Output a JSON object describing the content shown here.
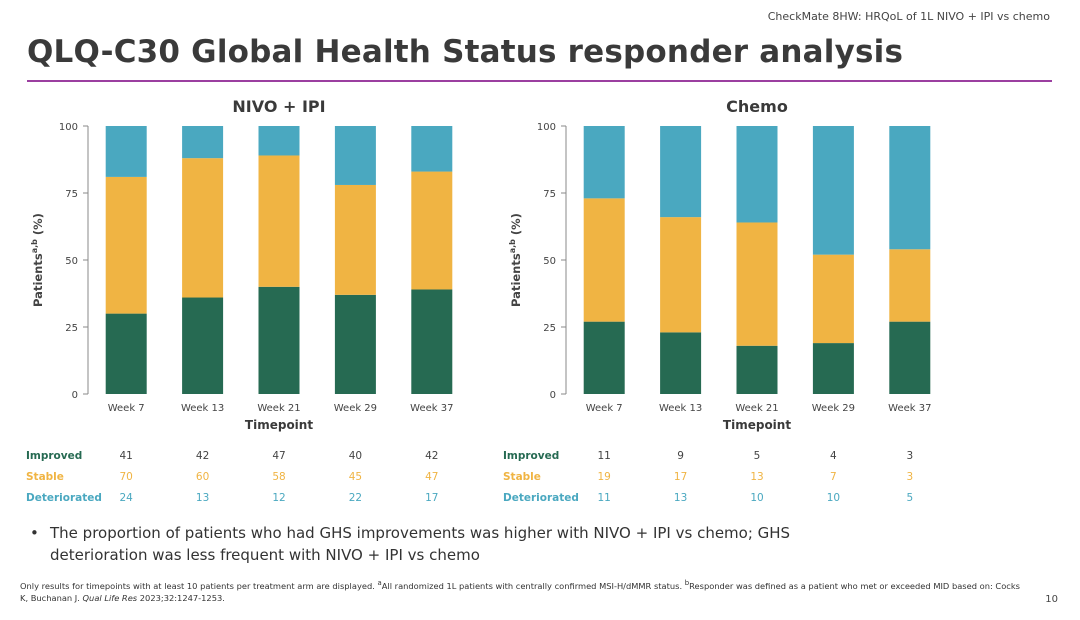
{
  "header": {
    "reference": "CheckMate 8HW: HRQoL of 1L NIVO + IPI vs chemo",
    "title": "QLQ-C30 Global Health Status responder analysis"
  },
  "colors": {
    "improved": "#266a52",
    "stable": "#f0b443",
    "deteriorated": "#4aa8c0",
    "title_rule": "#9b3fa0",
    "axis": "#888888"
  },
  "row_labels": [
    "Improved",
    "Stable",
    "Deteriorated"
  ],
  "chart_data": [
    {
      "type": "bar",
      "stacked": true,
      "title": "NIVO + IPI",
      "xlabel": "Timepoint",
      "ylabel": "Patients",
      "ylabel_superscript": "a,b",
      "ylabel_unit": "(%)",
      "ylim": [
        0,
        100
      ],
      "yticks": [
        "0",
        "25",
        "50",
        "75",
        "100"
      ],
      "categories": [
        "Week 7",
        "Week 13",
        "Week 21",
        "Week 29",
        "Week 37"
      ],
      "series": [
        {
          "name": "Improved",
          "values": [
            30,
            36,
            40,
            37,
            39
          ],
          "counts": [
            "41",
            "42",
            "47",
            "40",
            "42"
          ]
        },
        {
          "name": "Stable",
          "values": [
            51,
            52,
            49,
            41,
            44
          ],
          "counts": [
            "70",
            "60",
            "58",
            "45",
            "47"
          ]
        },
        {
          "name": "Deteriorated",
          "values": [
            19,
            12,
            11,
            22,
            17
          ],
          "counts": [
            "24",
            "13",
            "12",
            "22",
            "17"
          ]
        }
      ]
    },
    {
      "type": "bar",
      "stacked": true,
      "title": "Chemo",
      "xlabel": "Timepoint",
      "ylabel": "Patients",
      "ylabel_superscript": "a,b",
      "ylabel_unit": "(%)",
      "ylim": [
        0,
        100
      ],
      "yticks": [
        "0",
        "25",
        "50",
        "75",
        "100"
      ],
      "categories": [
        "Week 7",
        "Week 13",
        "Week 21",
        "Week 29",
        "Week 37"
      ],
      "series": [
        {
          "name": "Improved",
          "values": [
            27,
            23,
            18,
            19,
            27
          ],
          "counts": [
            "11",
            "9",
            "5",
            "4",
            "3"
          ]
        },
        {
          "name": "Stable",
          "values": [
            46,
            43,
            46,
            33,
            27
          ],
          "counts": [
            "19",
            "17",
            "13",
            "7",
            "3"
          ]
        },
        {
          "name": "Deteriorated",
          "values": [
            27,
            34,
            36,
            48,
            46
          ],
          "counts": [
            "11",
            "13",
            "10",
            "10",
            "5"
          ]
        }
      ]
    }
  ],
  "bullet": {
    "symbol": "•",
    "text": "The proportion of patients who had GHS improvements was higher with NIVO + IPI vs chemo; GHS deterioration was less frequent with NIVO + IPI vs chemo"
  },
  "footnote": {
    "part1": "Only results for timepoints with at least 10 patients per treatment arm are displayed. ",
    "sup_a": "a",
    "part2": "All randomized 1L patients with centrally confirmed MSI-H/dMMR status. ",
    "sup_b": "b",
    "part3": "Responder was defined as a patient who met or exceeded MID based on: Cocks K, Buchanan J. ",
    "journal": "Qual Life Res",
    "part4": " 2023;32:1247-1253."
  },
  "page_number": "10"
}
